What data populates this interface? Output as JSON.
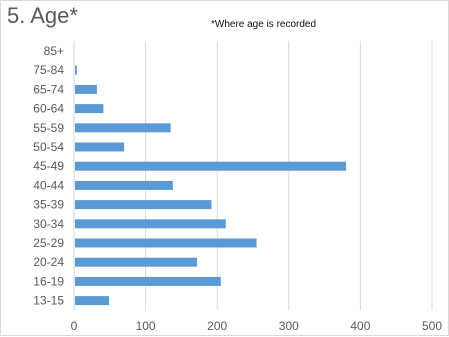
{
  "chart_data": {
    "type": "bar",
    "orientation": "horizontal",
    "title": "5. Age*",
    "subtitle": "*Where age is recorded",
    "categories": [
      "85+",
      "75-84",
      "65-74",
      "60-64",
      "55-59",
      "50-54",
      "45-49",
      "40-44",
      "35-39",
      "30-34",
      "25-29",
      "20-24",
      "16-19",
      "13-15"
    ],
    "values": [
      0,
      4,
      32,
      41,
      135,
      70,
      380,
      138,
      192,
      212,
      255,
      172,
      205,
      49
    ],
    "xlim": [
      0,
      500
    ],
    "xticks": [
      0,
      100,
      200,
      300,
      400,
      500
    ],
    "xlabel": "",
    "ylabel": "",
    "grid": "vertical",
    "bar_color": "#5b9bd5"
  }
}
